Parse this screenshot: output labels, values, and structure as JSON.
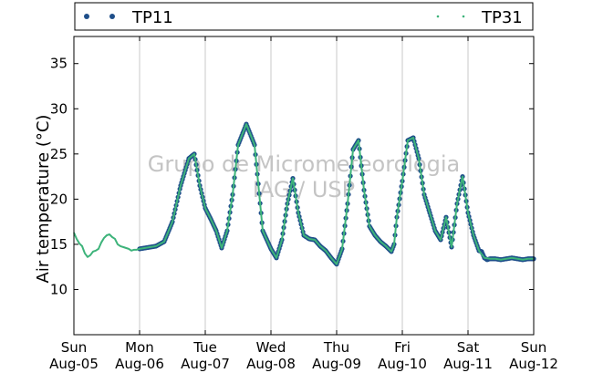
{
  "chart_data": {
    "type": "line",
    "ylabel": "Air temperature (°C)",
    "ylim": [
      5,
      38
    ],
    "yticks": [
      10,
      15,
      20,
      25,
      30,
      35
    ],
    "xlim": [
      "2012-08-05T00:00",
      "2012-08-12T00:00"
    ],
    "xticks": [
      {
        "line1": "Sun",
        "line2": "Aug-05"
      },
      {
        "line1": "Mon",
        "line2": "Aug-06"
      },
      {
        "line1": "Tue",
        "line2": "Aug-07"
      },
      {
        "line1": "Wed",
        "line2": "Aug-08"
      },
      {
        "line1": "Thu",
        "line2": "Aug-09"
      },
      {
        "line1": "Fri",
        "line2": "Aug-10"
      },
      {
        "line1": "Sat",
        "line2": "Aug-11"
      },
      {
        "line1": "Sun",
        "line2": "Aug-12"
      }
    ],
    "grid": "vertical",
    "legend_placement": "top",
    "watermark": [
      "Grupo de Micrometeorologia",
      "IAG / USP"
    ],
    "series": [
      {
        "name": "TP11",
        "color": "#1f4f8a",
        "style": "markers",
        "x_hours": [
          24,
          30,
          33,
          36,
          39,
          42,
          44,
          46,
          48,
          50,
          52,
          54,
          56,
          58,
          60,
          63,
          66,
          69,
          72,
          74,
          76,
          78,
          80,
          82,
          84,
          86,
          88,
          90,
          92,
          94,
          96,
          98,
          100,
          102,
          104,
          106,
          108,
          110,
          112,
          114,
          116,
          117,
          118,
          120,
          122,
          124,
          126,
          128,
          130,
          132,
          134,
          136,
          138,
          140,
          142,
          144,
          146,
          148,
          149,
          150,
          151,
          152,
          154,
          156,
          158,
          160,
          162,
          164,
          166,
          168
        ],
        "y": [
          14.5,
          14.8,
          15.3,
          17.5,
          21.5,
          24.5,
          25.0,
          21.5,
          19.0,
          17.8,
          16.5,
          14.6,
          16.5,
          20.5,
          26.0,
          28.3,
          26.0,
          16.5,
          14.5,
          13.5,
          15.5,
          19.5,
          22.3,
          18.5,
          16.0,
          15.6,
          15.5,
          14.8,
          14.3,
          13.5,
          12.8,
          14.5,
          19.5,
          25.5,
          26.5,
          21.0,
          17.0,
          16.0,
          15.3,
          14.8,
          14.2,
          15.0,
          18.0,
          22.0,
          26.5,
          26.8,
          24.5,
          20.5,
          18.5,
          16.5,
          15.5,
          18.0,
          14.7,
          19.5,
          22.5,
          18.5,
          16.0,
          14.3,
          14.2,
          13.5,
          13.3,
          13.4,
          13.4,
          13.3,
          13.4,
          13.5,
          13.4,
          13.3,
          13.4,
          13.4
        ]
      },
      {
        "name": "TP31",
        "color": "#3db37a",
        "style": "line",
        "x_hours": [
          0,
          1,
          2,
          3,
          4,
          5,
          6,
          7,
          8,
          9,
          10,
          11,
          12,
          13,
          14,
          15,
          16,
          17,
          18,
          19,
          20,
          21,
          22,
          23,
          24,
          30,
          33,
          36,
          39,
          42,
          44,
          46,
          48,
          50,
          52,
          54,
          56,
          58,
          60,
          63,
          66,
          69,
          72,
          74,
          76,
          78,
          80,
          82,
          84,
          86,
          88,
          90,
          92,
          94,
          96,
          98,
          100,
          102,
          104,
          106,
          108,
          110,
          112,
          114,
          116,
          117,
          118,
          120,
          122,
          124,
          126,
          128,
          130,
          132,
          134,
          136,
          138,
          140,
          142,
          144,
          146,
          148,
          150,
          152,
          154,
          156,
          158,
          160,
          162,
          164,
          166,
          168
        ],
        "y": [
          16.3,
          15.6,
          15.1,
          14.8,
          14.0,
          13.6,
          13.8,
          14.2,
          14.3,
          14.5,
          15.2,
          15.7,
          16.0,
          16.1,
          15.8,
          15.6,
          15.0,
          14.8,
          14.7,
          14.6,
          14.5,
          14.3,
          14.4,
          14.4,
          14.5,
          14.8,
          15.3,
          17.5,
          21.5,
          24.5,
          25.0,
          21.5,
          19.0,
          17.8,
          16.5,
          14.6,
          16.5,
          20.5,
          26.0,
          28.3,
          26.0,
          16.5,
          14.5,
          13.5,
          15.5,
          19.5,
          22.3,
          18.5,
          16.0,
          15.6,
          15.5,
          14.8,
          14.3,
          13.5,
          12.8,
          14.5,
          19.5,
          25.5,
          26.5,
          21.0,
          17.0,
          16.0,
          15.3,
          14.8,
          14.2,
          15.0,
          18.0,
          22.0,
          26.5,
          26.8,
          24.5,
          20.5,
          18.5,
          16.5,
          15.5,
          18.0,
          14.7,
          19.5,
          22.5,
          18.5,
          16.0,
          14.3,
          13.5,
          13.4,
          13.4,
          13.3,
          13.4,
          13.5,
          13.4,
          13.3,
          13.4,
          13.4
        ]
      }
    ]
  }
}
